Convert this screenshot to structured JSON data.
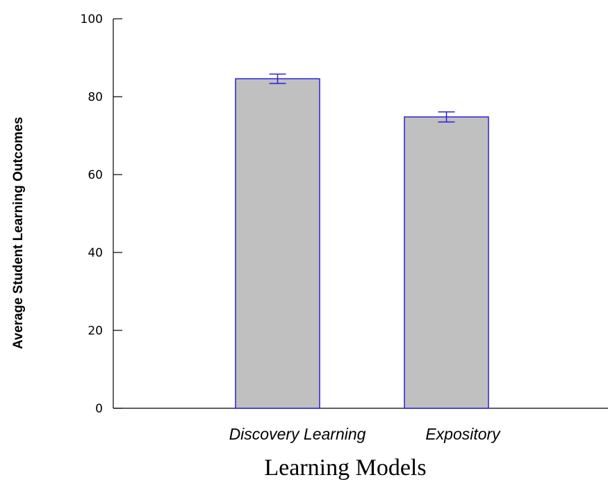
{
  "chart_data": {
    "type": "bar",
    "categories": [
      "Discovery Learning",
      "Expository"
    ],
    "values": [
      84.6,
      74.8
    ],
    "error": [
      1.2,
      1.3
    ],
    "xlabel": "Learning Models",
    "ylabel": "Average Student Learning Outcomes",
    "ylim": [
      0,
      100
    ],
    "yticks": [
      0,
      20,
      40,
      60,
      80,
      100
    ],
    "ytick_labels": [
      "0",
      "20",
      "40",
      "60",
      "80",
      "100"
    ],
    "grid": false,
    "colors": {
      "bar_fill": "#c0c0c0",
      "bar_edge": "#2a1fd6",
      "error_bar": "#2a1fd6",
      "axis": "#000000"
    }
  }
}
